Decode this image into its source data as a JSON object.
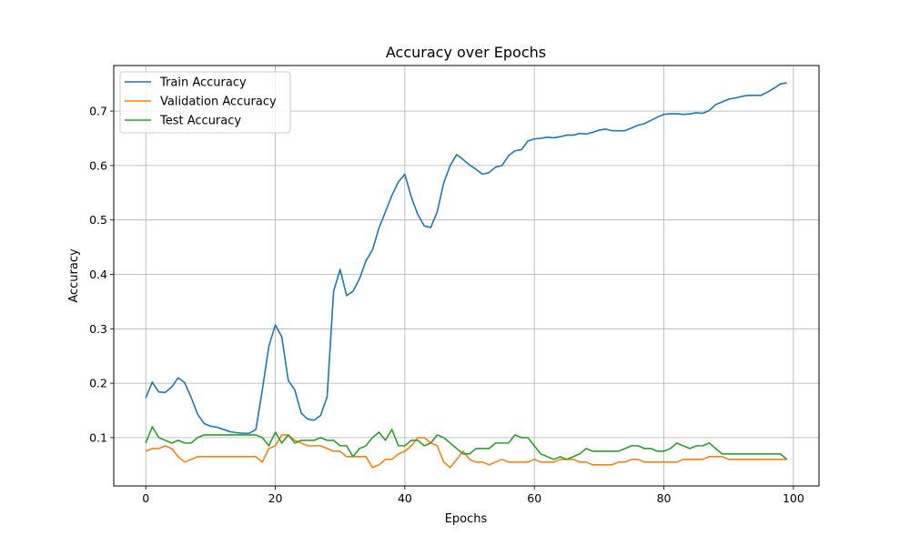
{
  "chart_data": {
    "type": "line",
    "title": "Accuracy over Epochs",
    "xlabel": "Epochs",
    "ylabel": "Accuracy",
    "xlim": [
      -4.95,
      103.95
    ],
    "ylim": [
      0.0112,
      0.7838
    ],
    "xticks": [
      0,
      20,
      40,
      60,
      80,
      100
    ],
    "yticks": [
      0.1,
      0.2,
      0.3,
      0.4,
      0.5,
      0.6,
      0.7
    ],
    "ytick_labels": [
      "0.1",
      "0.2",
      "0.3",
      "0.4",
      "0.5",
      "0.6",
      "0.7"
    ],
    "grid": true,
    "legend": "top-left",
    "x": [
      0,
      1,
      2,
      3,
      4,
      5,
      6,
      7,
      8,
      9,
      10,
      11,
      12,
      13,
      14,
      15,
      16,
      17,
      18,
      19,
      20,
      21,
      22,
      23,
      24,
      25,
      26,
      27,
      28,
      29,
      30,
      31,
      32,
      33,
      34,
      35,
      36,
      37,
      38,
      39,
      40,
      41,
      42,
      43,
      44,
      45,
      46,
      47,
      48,
      49,
      50,
      51,
      52,
      53,
      54,
      55,
      56,
      57,
      58,
      59,
      60,
      61,
      62,
      63,
      64,
      65,
      66,
      67,
      68,
      69,
      70,
      71,
      72,
      73,
      74,
      75,
      76,
      77,
      78,
      79,
      80,
      81,
      82,
      83,
      84,
      85,
      86,
      87,
      88,
      89,
      90,
      91,
      92,
      93,
      94,
      95,
      96,
      97,
      98,
      99
    ],
    "series": [
      {
        "name": "Train Accuracy",
        "color": "#1f77b4",
        "values": [
          0.173,
          0.202,
          0.184,
          0.183,
          0.193,
          0.21,
          0.201,
          0.174,
          0.143,
          0.126,
          0.121,
          0.119,
          0.115,
          0.111,
          0.109,
          0.108,
          0.108,
          0.115,
          0.188,
          0.268,
          0.307,
          0.285,
          0.205,
          0.188,
          0.145,
          0.134,
          0.132,
          0.141,
          0.175,
          0.369,
          0.409,
          0.361,
          0.369,
          0.392,
          0.425,
          0.445,
          0.485,
          0.515,
          0.545,
          0.57,
          0.584,
          0.542,
          0.51,
          0.489,
          0.486,
          0.515,
          0.568,
          0.6,
          0.62,
          0.611,
          0.601,
          0.593,
          0.584,
          0.587,
          0.597,
          0.6,
          0.618,
          0.627,
          0.629,
          0.645,
          0.649,
          0.65,
          0.652,
          0.651,
          0.653,
          0.656,
          0.656,
          0.659,
          0.658,
          0.661,
          0.665,
          0.667,
          0.664,
          0.664,
          0.664,
          0.669,
          0.674,
          0.677,
          0.683,
          0.689,
          0.694,
          0.695,
          0.695,
          0.694,
          0.695,
          0.697,
          0.696,
          0.701,
          0.712,
          0.717,
          0.722,
          0.724,
          0.727,
          0.729,
          0.729,
          0.729,
          0.735,
          0.742,
          0.75,
          0.752
        ]
      },
      {
        "name": "Validation Accuracy",
        "color": "#ff7f0e",
        "values": [
          0.075,
          0.08,
          0.08,
          0.085,
          0.08,
          0.065,
          0.055,
          0.06,
          0.065,
          0.065,
          0.065,
          0.065,
          0.065,
          0.065,
          0.065,
          0.065,
          0.065,
          0.065,
          0.055,
          0.08,
          0.085,
          0.105,
          0.105,
          0.095,
          0.09,
          0.085,
          0.085,
          0.085,
          0.08,
          0.075,
          0.075,
          0.065,
          0.065,
          0.065,
          0.065,
          0.045,
          0.05,
          0.06,
          0.06,
          0.07,
          0.075,
          0.085,
          0.1,
          0.1,
          0.09,
          0.085,
          0.055,
          0.045,
          0.06,
          0.075,
          0.06,
          0.055,
          0.055,
          0.05,
          0.055,
          0.06,
          0.055,
          0.055,
          0.055,
          0.055,
          0.06,
          0.055,
          0.055,
          0.055,
          0.06,
          0.06,
          0.06,
          0.055,
          0.055,
          0.05,
          0.05,
          0.05,
          0.05,
          0.055,
          0.055,
          0.06,
          0.06,
          0.055,
          0.055,
          0.055,
          0.055,
          0.055,
          0.055,
          0.06,
          0.06,
          0.06,
          0.06,
          0.065,
          0.065,
          0.065,
          0.06,
          0.06,
          0.06,
          0.06,
          0.06,
          0.06,
          0.06,
          0.06,
          0.06,
          0.06
        ]
      },
      {
        "name": "Test Accuracy",
        "color": "#2ca02c",
        "values": [
          0.09,
          0.12,
          0.1,
          0.095,
          0.09,
          0.095,
          0.09,
          0.09,
          0.1,
          0.105,
          0.105,
          0.105,
          0.105,
          0.105,
          0.105,
          0.105,
          0.105,
          0.105,
          0.1,
          0.085,
          0.11,
          0.09,
          0.105,
          0.09,
          0.095,
          0.095,
          0.095,
          0.1,
          0.095,
          0.095,
          0.085,
          0.085,
          0.065,
          0.08,
          0.085,
          0.1,
          0.11,
          0.095,
          0.115,
          0.085,
          0.085,
          0.095,
          0.095,
          0.085,
          0.09,
          0.105,
          0.1,
          0.09,
          0.08,
          0.07,
          0.07,
          0.08,
          0.08,
          0.08,
          0.09,
          0.09,
          0.09,
          0.105,
          0.1,
          0.1,
          0.085,
          0.07,
          0.065,
          0.06,
          0.065,
          0.06,
          0.065,
          0.07,
          0.08,
          0.075,
          0.075,
          0.075,
          0.075,
          0.075,
          0.08,
          0.085,
          0.085,
          0.08,
          0.08,
          0.075,
          0.075,
          0.08,
          0.09,
          0.085,
          0.08,
          0.085,
          0.085,
          0.09,
          0.08,
          0.07,
          0.07,
          0.07,
          0.07,
          0.07,
          0.07,
          0.07,
          0.07,
          0.07,
          0.07,
          0.06
        ]
      }
    ]
  }
}
